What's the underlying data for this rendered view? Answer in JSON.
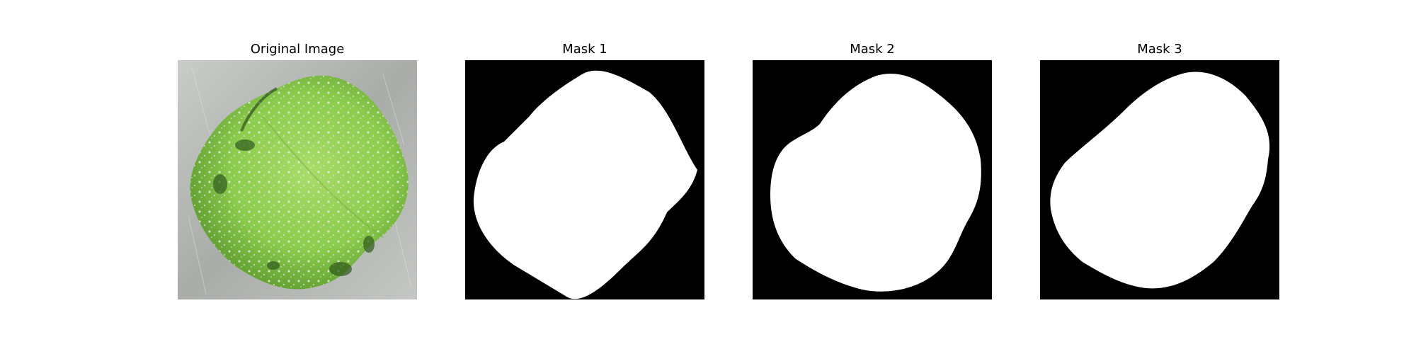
{
  "figure": {
    "panels": [
      {
        "title": "Original Image",
        "kind": "photo",
        "subject": "leaf"
      },
      {
        "title": "Mask 1",
        "kind": "mask"
      },
      {
        "title": "Mask 2",
        "kind": "mask"
      },
      {
        "title": "Mask 3",
        "kind": "mask"
      }
    ],
    "colors": {
      "mask_background": "#000000",
      "mask_foreground": "#ffffff",
      "leaf_green": "#8fcf4a",
      "leaf_dark": "#2f5a1c",
      "surface_gray": "#b5b8b4"
    }
  }
}
